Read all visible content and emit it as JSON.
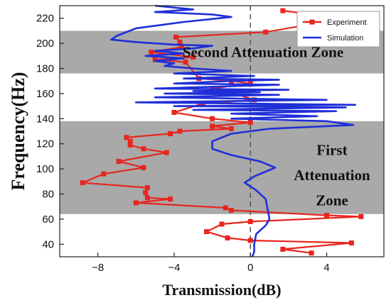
{
  "chart_data": {
    "type": "line",
    "xlabel": "Transmission(dB)",
    "ylabel": "Frequency(Hz)",
    "xlim": [
      -10,
      7
    ],
    "ylim": [
      30,
      230
    ],
    "xticks": [
      -8,
      -4,
      0,
      4
    ],
    "yticks": [
      40,
      60,
      80,
      100,
      120,
      140,
      160,
      180,
      200,
      220
    ],
    "grid": false,
    "legend": "top-right",
    "reference_line_x": 0,
    "zones": [
      {
        "label": [
          "Second Attenuation Zone"
        ],
        "ymin": 176,
        "ymax": 210
      },
      {
        "label": [
          "First",
          "Attenuation",
          "Zone"
        ],
        "ymin": 64,
        "ymax": 138
      }
    ],
    "series": [
      {
        "name": "Experiment",
        "color": "#e8251f",
        "marker": "square",
        "points": [
          [
            1.7,
            226
          ],
          [
            5.0,
            220
          ],
          [
            0.8,
            209
          ],
          [
            -3.9,
            205
          ],
          [
            -3.7,
            201
          ],
          [
            -3.6,
            197
          ],
          [
            -5.2,
            193
          ],
          [
            -3.0,
            189
          ],
          [
            -5.0,
            187
          ],
          [
            -3.4,
            185
          ],
          [
            -2.7,
            172
          ],
          [
            -1.0,
            170
          ],
          [
            0.0,
            168
          ],
          [
            -2.0,
            164
          ],
          [
            -1.0,
            161
          ],
          [
            0.2,
            155
          ],
          [
            -2.5,
            152
          ],
          [
            -4.0,
            145
          ],
          [
            -2.0,
            140
          ],
          [
            0.0,
            137
          ],
          [
            -2.0,
            134
          ],
          [
            -1.0,
            132
          ],
          [
            -3.7,
            130
          ],
          [
            -4.2,
            128
          ],
          [
            -6.5,
            125
          ],
          [
            -6.3,
            122
          ],
          [
            -6.3,
            119
          ],
          [
            -5.6,
            116
          ],
          [
            -4.4,
            113
          ],
          [
            -6.9,
            106
          ],
          [
            -5.6,
            101
          ],
          [
            -7.7,
            96
          ],
          [
            -8.8,
            89
          ],
          [
            -5.4,
            85
          ],
          [
            -5.5,
            81
          ],
          [
            -5.4,
            77
          ],
          [
            -4.2,
            76
          ],
          [
            -6.0,
            73
          ],
          [
            -1.3,
            69
          ],
          [
            -1.0,
            67
          ],
          [
            4.0,
            63
          ],
          [
            5.8,
            62
          ],
          [
            0.0,
            58
          ],
          [
            -1.5,
            56
          ],
          [
            -2.3,
            50
          ],
          [
            -1.2,
            45
          ],
          [
            0.0,
            43
          ],
          [
            5.3,
            41
          ],
          [
            1.7,
            36
          ],
          [
            3.2,
            33
          ]
        ]
      },
      {
        "name": "Simulation",
        "color": "#1f2fd8",
        "marker": "none",
        "points": [
          [
            -5.0,
            230
          ],
          [
            -3.0,
            227
          ],
          [
            -5.0,
            225
          ],
          [
            -2.0,
            223
          ],
          [
            -1.0,
            221
          ],
          [
            -3.5,
            217
          ],
          [
            -6.0,
            212
          ],
          [
            -7.0,
            206
          ],
          [
            -7.3,
            203
          ],
          [
            -6.0,
            201
          ],
          [
            -4.0,
            199
          ],
          [
            -2.0,
            198
          ],
          [
            -3.0,
            196
          ],
          [
            -5.0,
            194
          ],
          [
            -3.5,
            192
          ],
          [
            -5.5,
            190
          ],
          [
            -3.5,
            188
          ],
          [
            -5.0,
            186
          ],
          [
            -4.0,
            184
          ],
          [
            -4.5,
            182
          ],
          [
            -3.0,
            180
          ],
          [
            -1.0,
            178
          ],
          [
            -4.0,
            176
          ],
          [
            0.2,
            174
          ],
          [
            -3.5,
            172
          ],
          [
            1.5,
            171
          ],
          [
            -1.0,
            170
          ],
          [
            -4.0,
            168
          ],
          [
            1.5,
            167
          ],
          [
            -5.0,
            164
          ],
          [
            2.0,
            163
          ],
          [
            -3.0,
            162
          ],
          [
            0.5,
            161
          ],
          [
            -4.5,
            160
          ],
          [
            1.5,
            159
          ],
          [
            -5.0,
            157
          ],
          [
            4.0,
            155
          ],
          [
            -6.0,
            153
          ],
          [
            5.5,
            151
          ],
          [
            -4.0,
            150
          ],
          [
            5.0,
            149
          ],
          [
            -3.0,
            147
          ],
          [
            4.5,
            146
          ],
          [
            -1.0,
            144
          ],
          [
            3.5,
            142
          ],
          [
            -1.0,
            140
          ],
          [
            4.0,
            138
          ],
          [
            5.4,
            135
          ],
          [
            1.0,
            132
          ],
          [
            -1.0,
            128
          ],
          [
            -2.0,
            122
          ],
          [
            -2.0,
            116
          ],
          [
            -1.0,
            111
          ],
          [
            0.5,
            106
          ],
          [
            1.3,
            101
          ],
          [
            0.2,
            94
          ],
          [
            -0.3,
            89
          ],
          [
            0.3,
            83
          ],
          [
            0.8,
            76
          ],
          [
            0.9,
            68
          ],
          [
            1.0,
            60
          ],
          [
            0.8,
            55
          ],
          [
            0.3,
            48
          ],
          [
            0.2,
            40
          ],
          [
            0.2,
            34
          ],
          [
            0.1,
            30
          ]
        ]
      }
    ]
  }
}
